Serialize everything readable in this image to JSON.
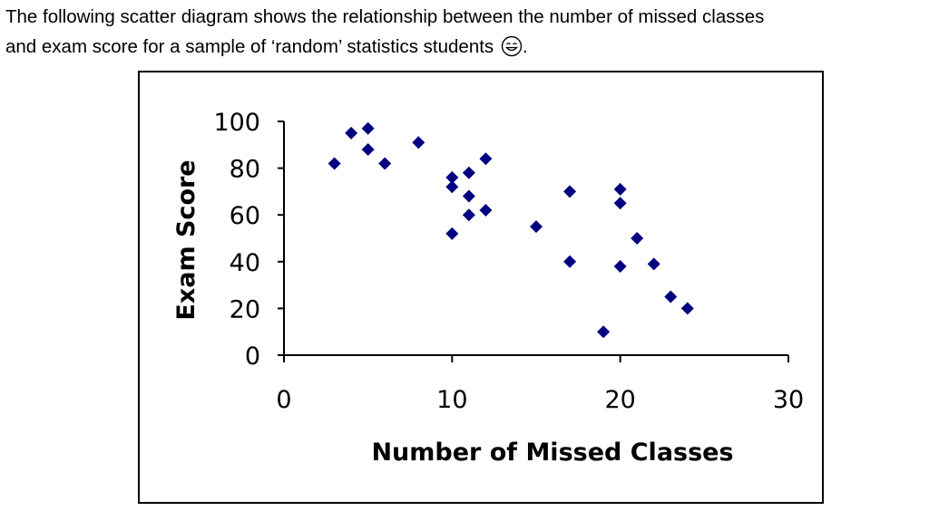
{
  "intro": {
    "line1": "The following scatter diagram shows the relationship between the number of missed classes",
    "line2": "and exam score for a sample of ‘random’ statistics students",
    "line2_end": ".",
    "emoji_icon": "smiling-face-icon"
  },
  "chart_data": {
    "type": "scatter",
    "title": "",
    "xlabel": "Number of Missed Classes",
    "ylabel": "Exam Score",
    "xlim": [
      0,
      30
    ],
    "ylim": [
      0,
      100
    ],
    "xticks": [
      "0",
      "10",
      "20",
      "30"
    ],
    "yticks": [
      "0",
      "20",
      "40",
      "60",
      "80",
      "100"
    ],
    "grid": false,
    "legend": "none",
    "marker": "diamond",
    "color": "#000080",
    "points": [
      {
        "x": 3,
        "y": 82
      },
      {
        "x": 4,
        "y": 95
      },
      {
        "x": 5,
        "y": 97
      },
      {
        "x": 5,
        "y": 88
      },
      {
        "x": 6,
        "y": 82
      },
      {
        "x": 8,
        "y": 91
      },
      {
        "x": 10,
        "y": 76
      },
      {
        "x": 10,
        "y": 72
      },
      {
        "x": 10,
        "y": 52
      },
      {
        "x": 11,
        "y": 78
      },
      {
        "x": 11,
        "y": 68
      },
      {
        "x": 11,
        "y": 60
      },
      {
        "x": 12,
        "y": 84
      },
      {
        "x": 12,
        "y": 62
      },
      {
        "x": 15,
        "y": 55
      },
      {
        "x": 17,
        "y": 70
      },
      {
        "x": 17,
        "y": 40
      },
      {
        "x": 19,
        "y": 10
      },
      {
        "x": 20,
        "y": 71
      },
      {
        "x": 20,
        "y": 65
      },
      {
        "x": 20,
        "y": 38
      },
      {
        "x": 21,
        "y": 50
      },
      {
        "x": 22,
        "y": 39
      },
      {
        "x": 23,
        "y": 25
      },
      {
        "x": 24,
        "y": 20
      }
    ]
  }
}
